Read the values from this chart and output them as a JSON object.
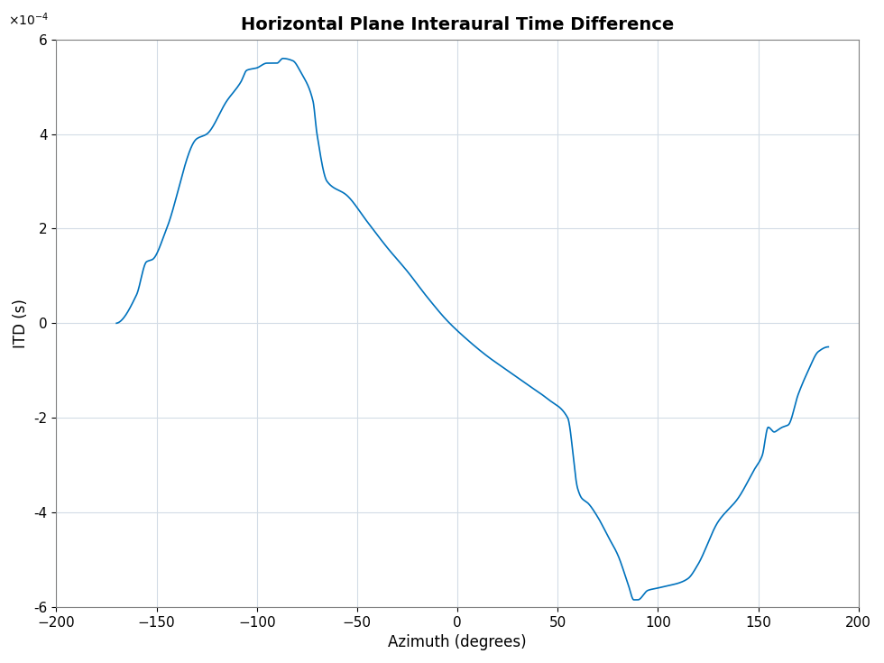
{
  "title": "Horizontal Plane Interaural Time Difference",
  "xlabel": "Azimuth (degrees)",
  "ylabel": "ITD (s)",
  "xlim": [
    -200,
    200
  ],
  "ylim": [
    -0.0006,
    0.0006
  ],
  "xticks": [
    -200,
    -150,
    -100,
    -50,
    0,
    50,
    100,
    150,
    200
  ],
  "yticks": [
    -0.0006,
    -0.0004,
    -0.0002,
    0,
    0.0002,
    0.0004,
    0.0006
  ],
  "ytick_labels": [
    "-6",
    "-4",
    "-2",
    "0",
    "2",
    "4",
    "6"
  ],
  "line_color": "#0072bd",
  "line_width": 1.2,
  "background_color": "#ffffff",
  "grid_color": "#d3dce6",
  "title_fontsize": 14,
  "label_fontsize": 12,
  "tick_fontsize": 11,
  "sci_label": "×10⁻⁴",
  "keypoints_az": [
    -170,
    -160,
    -155,
    -152,
    -145,
    -130,
    -125,
    -115,
    -108,
    -105,
    -100,
    -95,
    -90,
    -87,
    -82,
    -78,
    -72,
    -70,
    -65,
    -55,
    -45,
    -35,
    -25,
    -15,
    -5,
    5,
    15,
    25,
    35,
    45,
    55,
    60,
    62,
    65,
    70,
    75,
    80,
    85,
    88,
    90,
    95,
    100,
    105,
    110,
    115,
    120,
    130,
    140,
    148,
    152,
    155,
    158,
    160,
    162,
    165,
    170,
    175,
    180,
    185
  ],
  "keypoints_itd": [
    0.0,
    0.6,
    1.3,
    1.35,
    2.0,
    3.9,
    4.0,
    4.7,
    5.1,
    5.35,
    5.4,
    5.5,
    5.5,
    5.6,
    5.55,
    5.3,
    4.7,
    4.0,
    3.0,
    2.7,
    2.15,
    1.6,
    1.1,
    0.55,
    0.05,
    -0.35,
    -0.7,
    -1.0,
    -1.3,
    -1.6,
    -2.0,
    -3.5,
    -3.7,
    -3.8,
    -4.1,
    -4.5,
    -4.9,
    -5.5,
    -5.85,
    -5.85,
    -5.65,
    -5.6,
    -5.55,
    -5.5,
    -5.4,
    -5.1,
    -4.2,
    -3.7,
    -3.1,
    -2.8,
    -2.2,
    -2.3,
    -2.25,
    -2.2,
    -2.15,
    -1.5,
    -1.0,
    -0.6,
    -0.5
  ]
}
